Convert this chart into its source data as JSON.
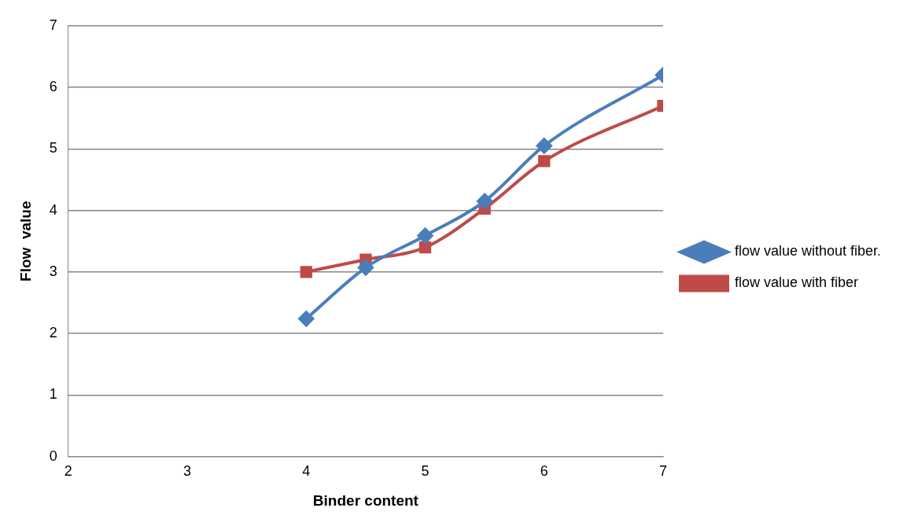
{
  "chart_data": {
    "type": "line",
    "xlabel": "Binder content",
    "ylabel": "Flow  value",
    "xlim": [
      2,
      7
    ],
    "xticks": [
      2,
      3,
      4,
      5,
      6,
      7
    ],
    "ylim": [
      0,
      7
    ],
    "yticks": [
      0,
      1,
      2,
      3,
      4,
      5,
      6,
      7
    ],
    "grid": "y",
    "legend": "right",
    "x": [
      4,
      4.5,
      5,
      5.5,
      6,
      7
    ],
    "series": [
      {
        "name": "flow value without fiber.",
        "color": "#4a7ebb",
        "marker": "diamond",
        "values": [
          2.24,
          3.07,
          3.59,
          4.15,
          5.05,
          6.2
        ]
      },
      {
        "name": "flow value with fiber",
        "color": "#be4b48",
        "marker": "square",
        "values": [
          3.0,
          3.2,
          3.4,
          4.03,
          4.8,
          5.7
        ]
      }
    ]
  }
}
